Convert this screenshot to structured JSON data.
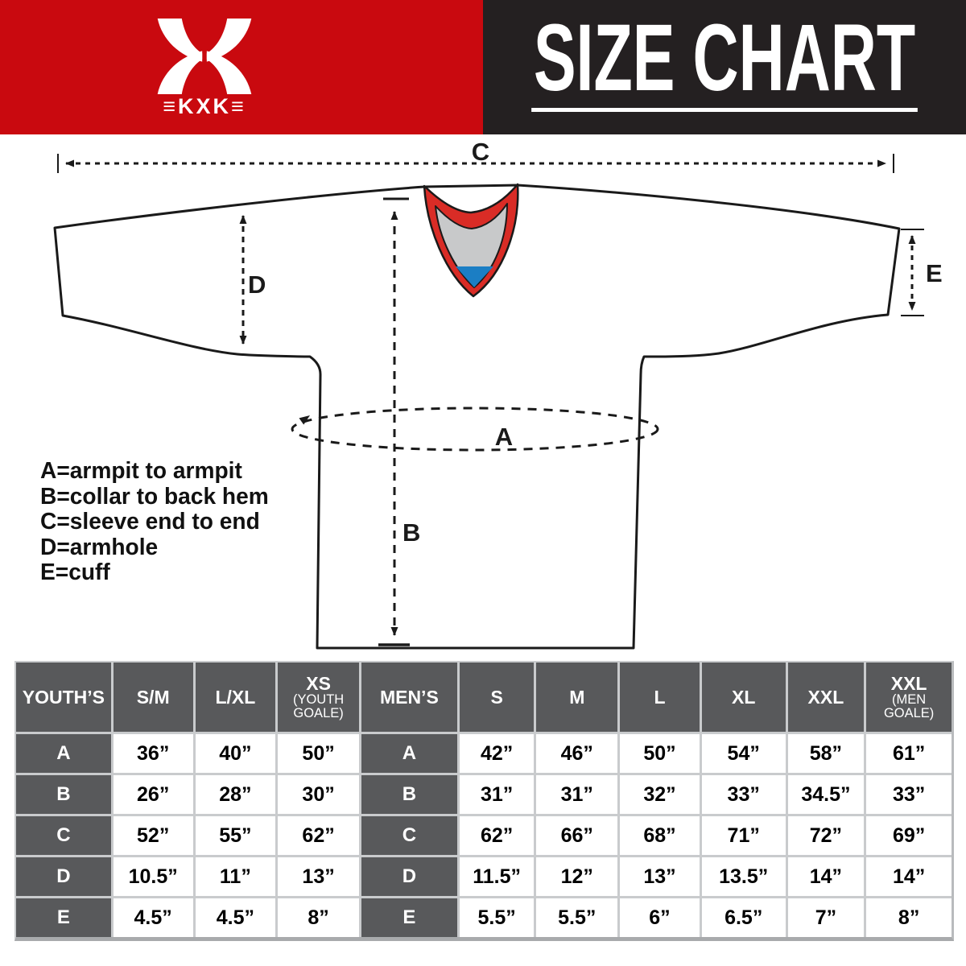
{
  "brand": {
    "logo_icon": "kxk-x-logo",
    "logo_text": "≡KXK≡"
  },
  "header": {
    "title": "SIZE CHART",
    "red": "#C9090F",
    "black": "#242021"
  },
  "diagram": {
    "labels": {
      "A": "A",
      "B": "B",
      "C": "C",
      "D": "D",
      "E": "E"
    },
    "legend": [
      "A=armpit to armpit",
      "B=collar to back hem",
      "C=sleeve end to end",
      "D=armhole",
      "E=cuff"
    ],
    "colors": {
      "collar_red": "#D92C26",
      "collar_gray": "#C8C9CA",
      "collar_blue": "#1B7EC4",
      "outline": "#1a1a1a"
    }
  },
  "size_table": {
    "header_bg": "#58595B",
    "row_labels": [
      "A",
      "B",
      "C",
      "D",
      "E"
    ],
    "sections": [
      {
        "label": "YOUTH’S",
        "columns": [
          {
            "label": "S/M",
            "sub": ""
          },
          {
            "label": "L/XL",
            "sub": ""
          },
          {
            "label": "XS",
            "sub": "(YOUTH GOALE)"
          }
        ],
        "rows": [
          {
            "label": "A",
            "values": [
              "36”",
              "40”",
              "50”"
            ]
          },
          {
            "label": "B",
            "values": [
              "26”",
              "28”",
              "30”"
            ]
          },
          {
            "label": "C",
            "values": [
              "52”",
              "55”",
              "62”"
            ]
          },
          {
            "label": "D",
            "values": [
              "10.5”",
              "11”",
              "13”"
            ]
          },
          {
            "label": "E",
            "values": [
              "4.5”",
              "4.5”",
              "8”"
            ]
          }
        ]
      },
      {
        "label": "MEN’S",
        "columns": [
          {
            "label": "S",
            "sub": ""
          },
          {
            "label": "M",
            "sub": ""
          },
          {
            "label": "L",
            "sub": ""
          },
          {
            "label": "XL",
            "sub": ""
          },
          {
            "label": "XXL",
            "sub": ""
          },
          {
            "label": "XXL",
            "sub": "(MEN GOALE)"
          }
        ],
        "rows": [
          {
            "label": "A",
            "values": [
              "42”",
              "46”",
              "50”",
              "54”",
              "58”",
              "61”"
            ]
          },
          {
            "label": "B",
            "values": [
              "31”",
              "31”",
              "32”",
              "33”",
              "34.5”",
              "33”"
            ]
          },
          {
            "label": "C",
            "values": [
              "62”",
              "66”",
              "68”",
              "71”",
              "72”",
              "69”"
            ]
          },
          {
            "label": "D",
            "values": [
              "11.5”",
              "12”",
              "13”",
              "13.5”",
              "14”",
              "14”"
            ]
          },
          {
            "label": "E",
            "values": [
              "5.5”",
              "5.5”",
              "6”",
              "6.5”",
              "7”",
              "8”"
            ]
          }
        ]
      }
    ]
  }
}
